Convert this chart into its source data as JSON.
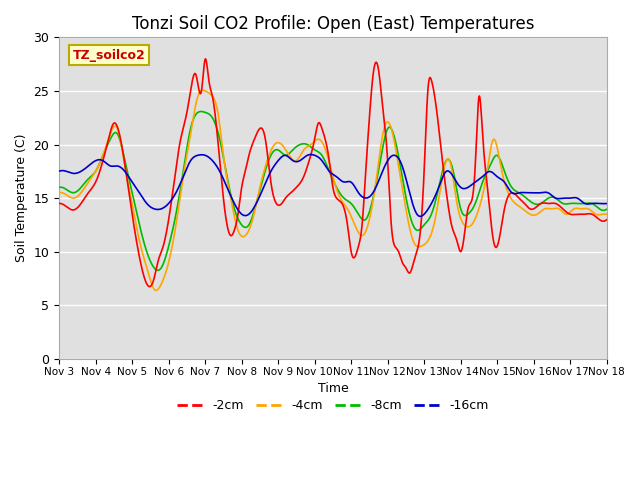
{
  "title": "Tonzi Soil CO2 Profile: Open (East) Temperatures",
  "xlabel": "Time",
  "ylabel": "Soil Temperature (C)",
  "ylim": [
    0,
    30
  ],
  "xlim_days": [
    3,
    18
  ],
  "tick_labels": [
    "Nov 3",
    "Nov 4",
    "Nov 5",
    "Nov 6",
    "Nov 7",
    "Nov 8",
    "Nov 9",
    "Nov 10",
    "Nov 11",
    "Nov 12",
    "Nov 13",
    "Nov 14",
    "Nov 15",
    "Nov 16",
    "Nov 17",
    "Nov 18"
  ],
  "series_colors": [
    "#ff0000",
    "#ffa500",
    "#00bb00",
    "#0000cc"
  ],
  "series_labels": [
    "-2cm",
    "-4cm",
    "-8cm",
    "-16cm"
  ],
  "legend_title": "TZ_soilco2",
  "background_color": "#e0e0e0",
  "grid_color": "#ffffff",
  "title_fontsize": 12,
  "axis_fontsize": 9,
  "legend_fontsize": 9,
  "yticks": [
    0,
    5,
    10,
    15,
    20,
    25,
    30
  ],
  "t2cm_x": [
    3.0,
    3.2,
    3.4,
    3.6,
    3.8,
    4.0,
    4.2,
    4.35,
    4.5,
    4.65,
    4.85,
    5.0,
    5.2,
    5.4,
    5.6,
    5.7,
    5.85,
    6.0,
    6.15,
    6.3,
    6.5,
    6.6,
    6.75,
    6.9,
    7.0,
    7.1,
    7.2,
    7.3,
    7.4,
    7.5,
    7.6,
    7.7,
    7.8,
    7.9,
    8.0,
    8.1,
    8.2,
    8.35,
    8.5,
    8.65,
    8.8,
    8.95,
    9.1,
    9.2,
    9.35,
    9.5,
    9.7,
    9.85,
    10.0,
    10.1,
    10.2,
    10.4,
    10.5,
    10.6,
    10.75,
    10.9,
    11.0,
    11.1,
    11.2,
    11.3,
    11.4,
    11.5,
    11.6,
    11.75,
    11.85,
    12.0,
    12.1,
    12.2,
    12.3,
    12.4,
    12.5,
    12.6,
    12.75,
    12.9,
    13.0,
    13.1,
    13.2,
    13.35,
    13.5,
    13.65,
    13.75,
    13.9,
    14.0,
    14.1,
    14.2,
    14.4,
    14.5,
    14.6,
    14.75,
    14.9,
    15.0,
    15.2,
    15.4,
    15.6,
    15.75,
    15.9,
    16.0,
    16.2,
    16.4,
    16.6,
    16.8,
    17.0,
    17.2,
    17.4,
    17.6,
    17.8,
    18.0
  ],
  "t2cm_y": [
    14.5,
    14.2,
    13.9,
    14.5,
    15.5,
    16.5,
    18.5,
    20.5,
    22.0,
    21.0,
    17.0,
    13.5,
    9.5,
    7.0,
    7.5,
    9.0,
    10.5,
    13.0,
    16.5,
    20.0,
    23.0,
    25.0,
    26.5,
    25.0,
    28.0,
    26.0,
    24.5,
    22.0,
    18.5,
    15.0,
    12.5,
    11.5,
    12.0,
    13.5,
    16.0,
    17.5,
    19.0,
    20.5,
    21.5,
    20.5,
    16.5,
    14.5,
    14.5,
    15.0,
    15.5,
    16.0,
    17.0,
    18.5,
    20.5,
    22.0,
    21.5,
    18.5,
    16.0,
    15.0,
    14.5,
    12.5,
    10.0,
    9.5,
    10.5,
    12.5,
    17.5,
    22.5,
    26.5,
    27.0,
    24.0,
    18.5,
    12.5,
    10.5,
    10.0,
    9.0,
    8.5,
    8.0,
    9.5,
    12.0,
    17.5,
    25.0,
    26.0,
    23.0,
    18.5,
    14.5,
    12.5,
    11.0,
    10.0,
    11.5,
    14.0,
    18.0,
    24.5,
    21.0,
    15.5,
    11.0,
    10.5,
    14.0,
    15.5,
    15.0,
    14.5,
    14.0,
    14.0,
    14.5,
    14.5,
    14.5,
    14.0,
    13.5,
    13.5,
    13.5,
    13.5,
    13.0,
    13.0
  ],
  "t4cm_x": [
    3.0,
    3.2,
    3.4,
    3.6,
    3.8,
    4.0,
    4.2,
    4.4,
    4.6,
    4.8,
    5.0,
    5.2,
    5.4,
    5.6,
    5.8,
    6.0,
    6.2,
    6.4,
    6.6,
    6.8,
    7.0,
    7.2,
    7.35,
    7.5,
    7.7,
    7.9,
    8.1,
    8.3,
    8.5,
    8.7,
    8.9,
    9.1,
    9.3,
    9.5,
    9.7,
    9.9,
    10.1,
    10.3,
    10.5,
    10.7,
    10.9,
    11.1,
    11.3,
    11.5,
    11.7,
    11.9,
    12.1,
    12.3,
    12.5,
    12.7,
    12.9,
    13.1,
    13.3,
    13.5,
    13.7,
    13.9,
    14.1,
    14.3,
    14.5,
    14.7,
    14.9,
    15.1,
    15.3,
    15.5,
    15.7,
    15.9,
    16.1,
    16.3,
    16.5,
    16.7,
    16.9,
    17.1,
    17.3,
    17.5,
    17.7,
    17.9,
    18.0
  ],
  "t4cm_y": [
    15.5,
    15.3,
    15.0,
    15.5,
    16.5,
    17.5,
    19.0,
    21.0,
    21.5,
    18.0,
    14.5,
    11.0,
    8.5,
    6.5,
    7.0,
    9.0,
    12.5,
    17.0,
    21.0,
    24.5,
    25.0,
    24.5,
    23.0,
    19.0,
    15.0,
    12.0,
    11.5,
    13.0,
    16.0,
    18.5,
    20.0,
    20.0,
    19.0,
    18.5,
    19.5,
    20.0,
    20.5,
    19.5,
    17.0,
    15.0,
    14.0,
    12.5,
    11.5,
    13.0,
    17.0,
    21.5,
    21.5,
    18.0,
    14.0,
    11.0,
    10.5,
    11.0,
    13.0,
    17.0,
    18.5,
    14.5,
    12.5,
    12.5,
    14.0,
    17.0,
    20.5,
    18.0,
    15.5,
    14.5,
    14.0,
    13.5,
    13.5,
    14.0,
    14.0,
    14.0,
    13.5,
    14.0,
    14.0,
    14.0,
    13.5,
    13.5,
    13.5
  ],
  "t8cm_x": [
    3.0,
    3.2,
    3.4,
    3.6,
    3.8,
    4.0,
    4.2,
    4.4,
    4.6,
    4.8,
    5.0,
    5.2,
    5.4,
    5.6,
    5.8,
    6.0,
    6.2,
    6.4,
    6.6,
    6.8,
    7.0,
    7.2,
    7.4,
    7.6,
    7.8,
    8.0,
    8.2,
    8.4,
    8.6,
    8.8,
    9.0,
    9.2,
    9.4,
    9.6,
    9.8,
    10.0,
    10.2,
    10.4,
    10.6,
    10.8,
    11.0,
    11.2,
    11.4,
    11.6,
    11.8,
    12.0,
    12.2,
    12.4,
    12.6,
    12.8,
    13.0,
    13.2,
    13.4,
    13.6,
    13.8,
    14.0,
    14.2,
    14.4,
    14.6,
    14.8,
    15.0,
    15.2,
    15.4,
    15.6,
    15.8,
    16.0,
    16.2,
    16.4,
    16.6,
    16.8,
    17.0,
    17.2,
    17.4,
    17.6,
    17.8,
    18.0
  ],
  "t8cm_y": [
    16.0,
    15.8,
    15.5,
    16.0,
    16.8,
    17.5,
    19.0,
    20.5,
    21.0,
    18.5,
    15.5,
    12.5,
    10.0,
    8.5,
    8.5,
    10.5,
    13.5,
    17.5,
    21.5,
    23.0,
    23.0,
    22.5,
    20.5,
    17.0,
    14.0,
    12.5,
    12.5,
    14.5,
    17.0,
    19.0,
    19.5,
    19.0,
    19.5,
    20.0,
    20.0,
    19.5,
    19.0,
    17.5,
    16.0,
    15.0,
    14.5,
    13.5,
    13.0,
    15.0,
    18.5,
    21.5,
    20.5,
    17.0,
    13.5,
    12.0,
    12.5,
    13.5,
    16.0,
    18.5,
    17.5,
    14.0,
    13.5,
    14.5,
    16.5,
    18.0,
    19.0,
    17.5,
    16.0,
    15.5,
    15.0,
    14.5,
    14.5,
    15.0,
    15.0,
    14.5,
    14.5,
    14.5,
    14.5,
    14.5,
    14.0,
    14.0
  ],
  "t16cm_x": [
    3.0,
    3.2,
    3.4,
    3.6,
    3.8,
    4.0,
    4.2,
    4.4,
    4.6,
    4.8,
    5.0,
    5.2,
    5.4,
    5.6,
    5.8,
    6.0,
    6.2,
    6.4,
    6.6,
    6.8,
    7.0,
    7.2,
    7.4,
    7.6,
    7.8,
    8.0,
    8.2,
    8.4,
    8.6,
    8.8,
    9.0,
    9.2,
    9.4,
    9.6,
    9.8,
    10.0,
    10.2,
    10.4,
    10.6,
    10.8,
    11.0,
    11.2,
    11.4,
    11.6,
    11.8,
    12.0,
    12.2,
    12.4,
    12.6,
    12.8,
    13.0,
    13.2,
    13.4,
    13.6,
    13.8,
    14.0,
    14.2,
    14.4,
    14.6,
    14.8,
    15.0,
    15.2,
    15.4,
    15.6,
    15.8,
    16.0,
    16.2,
    16.4,
    16.6,
    16.8,
    17.0,
    17.2,
    17.4,
    17.6,
    17.8,
    18.0
  ],
  "t16cm_y": [
    17.5,
    17.5,
    17.3,
    17.5,
    18.0,
    18.5,
    18.5,
    18.0,
    18.0,
    17.5,
    16.5,
    15.5,
    14.5,
    14.0,
    14.0,
    14.5,
    15.5,
    17.0,
    18.5,
    19.0,
    19.0,
    18.5,
    17.5,
    16.0,
    14.5,
    13.5,
    13.5,
    14.5,
    16.0,
    17.5,
    18.5,
    19.0,
    18.5,
    18.5,
    19.0,
    19.0,
    18.5,
    17.5,
    17.0,
    16.5,
    16.5,
    15.5,
    15.0,
    15.5,
    17.0,
    18.5,
    19.0,
    18.0,
    15.5,
    13.5,
    13.5,
    14.5,
    16.0,
    17.5,
    17.0,
    16.0,
    16.0,
    16.5,
    17.0,
    17.5,
    17.0,
    16.5,
    15.5,
    15.5,
    15.5,
    15.5,
    15.5,
    15.5,
    15.0,
    15.0,
    15.0,
    15.0,
    14.5,
    14.5,
    14.5,
    14.5
  ]
}
